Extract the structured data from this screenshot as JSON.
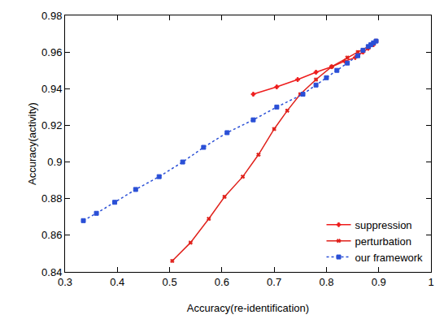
{
  "chart_data": {
    "type": "line",
    "x_label": "Accuracy(re-identification)",
    "y_label": "Accuracy(activity)",
    "xlim": [
      0.3,
      1
    ],
    "xticks": [
      0.3,
      0.4,
      0.5,
      0.6,
      0.7,
      0.8,
      0.9,
      1
    ],
    "ylim": [
      0.84,
      0.98
    ],
    "yticks": [
      0.84,
      0.86,
      0.88,
      0.9,
      0.92,
      0.94,
      0.96,
      0.98
    ],
    "grid": false,
    "legend": "bottom right",
    "series": [
      {
        "name": "suppression",
        "color": "#ee1c1c",
        "marker": "cross",
        "line_style": "solid",
        "x": [
          0.66,
          0.705,
          0.745,
          0.78,
          0.81,
          0.835,
          0.855,
          0.87,
          0.88,
          0.89,
          0.895
        ],
        "values": [
          0.937,
          0.941,
          0.945,
          0.949,
          0.952,
          0.955,
          0.957,
          0.96,
          0.962,
          0.964,
          0.966
        ]
      },
      {
        "name": "perturbation",
        "color": "#e0201a",
        "marker": "x",
        "line_style": "solid",
        "x": [
          0.505,
          0.54,
          0.575,
          0.605,
          0.64,
          0.67,
          0.7,
          0.725,
          0.75,
          0.78,
          0.81,
          0.84,
          0.86,
          0.88,
          0.895
        ],
        "values": [
          0.846,
          0.856,
          0.869,
          0.881,
          0.892,
          0.904,
          0.918,
          0.928,
          0.937,
          0.945,
          0.952,
          0.957,
          0.96,
          0.963,
          0.966
        ]
      },
      {
        "name": "our framework",
        "color": "#2a4fd6",
        "marker": "square",
        "line_style": "dot",
        "x": [
          0.335,
          0.36,
          0.395,
          0.435,
          0.48,
          0.525,
          0.565,
          0.61,
          0.66,
          0.705,
          0.755,
          0.78,
          0.8,
          0.82,
          0.84,
          0.86,
          0.87,
          0.88,
          0.885,
          0.89,
          0.895
        ],
        "values": [
          0.868,
          0.872,
          0.878,
          0.885,
          0.892,
          0.9,
          0.908,
          0.916,
          0.923,
          0.93,
          0.937,
          0.942,
          0.946,
          0.95,
          0.954,
          0.958,
          0.961,
          0.963,
          0.964,
          0.965,
          0.966
        ]
      }
    ]
  }
}
